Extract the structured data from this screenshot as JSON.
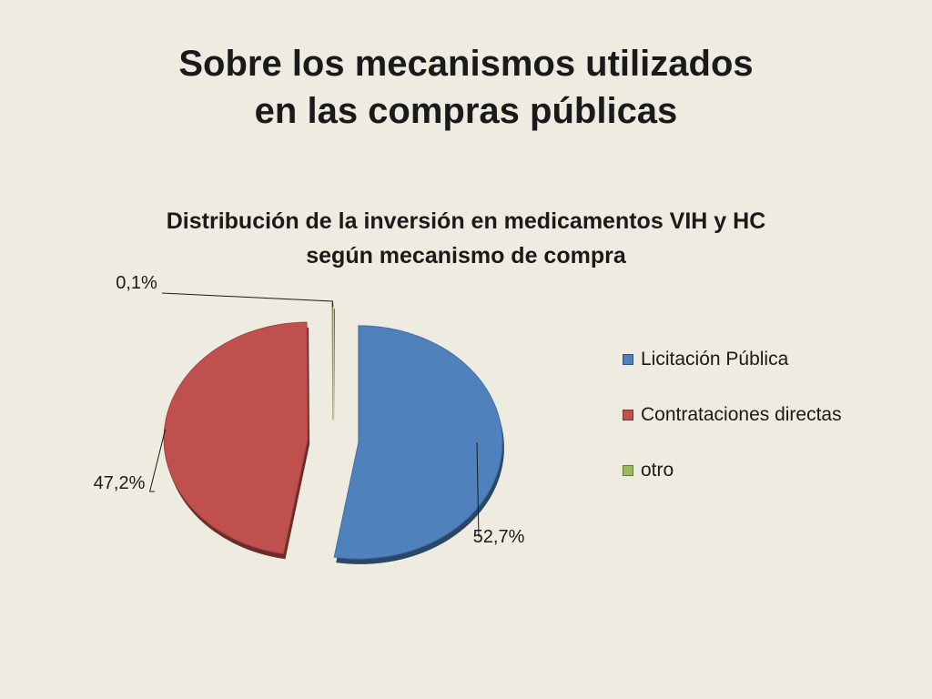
{
  "slide": {
    "title_line1": "Sobre los mecanismos utilizados",
    "title_line2": "en las compras públicas"
  },
  "chart_data": {
    "type": "pie",
    "title_line1": "Distribución de la inversión en medicamentos VIH y HC",
    "title_line2": "según mecanismo de compra",
    "categories": [
      "Licitación Pública",
      "Contrataciones directas",
      "otro"
    ],
    "values": [
      52.7,
      47.2,
      0.1
    ],
    "data_labels": [
      "52,7%",
      "47,2%",
      "0,1%"
    ],
    "colors": [
      "#4F81BD",
      "#C0504D",
      "#9BBB59"
    ],
    "exploded": true,
    "legend_position": "right"
  }
}
